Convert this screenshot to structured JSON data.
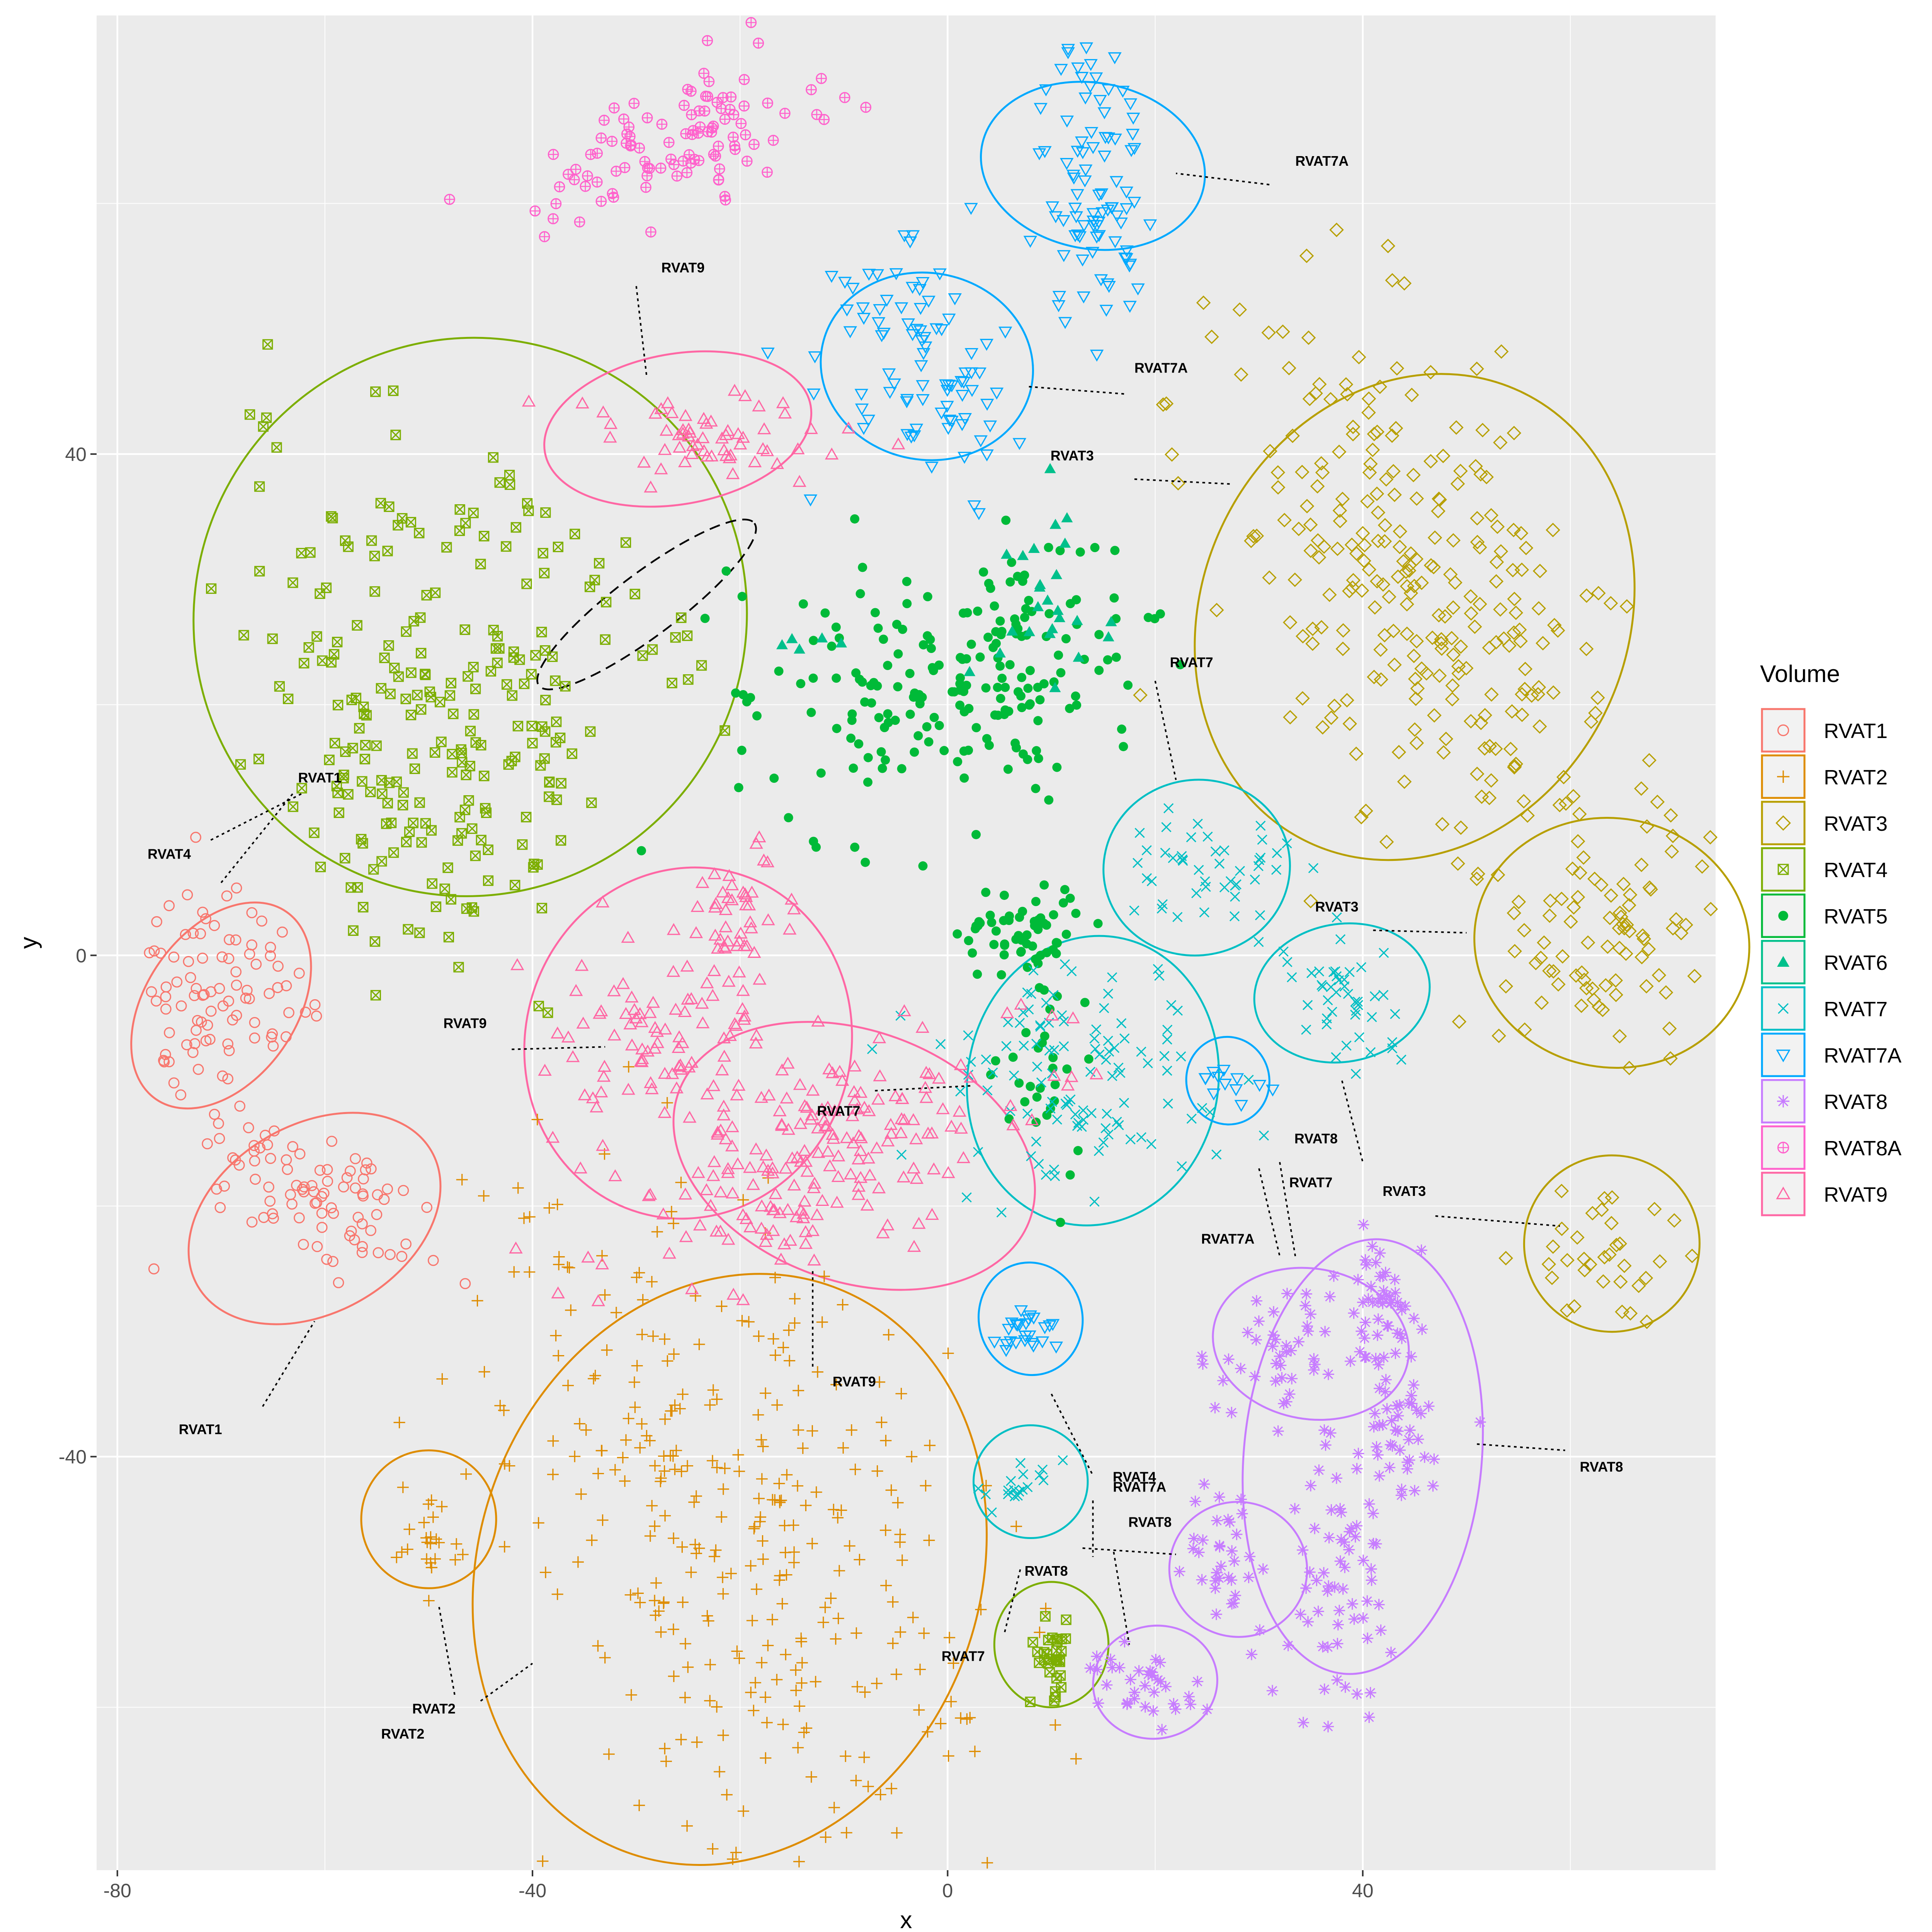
{
  "chart_data": {
    "type": "scatter",
    "xlabel": "x",
    "ylabel": "y",
    "xlim": [
      -82,
      74
    ],
    "ylim": [
      -73,
      75
    ],
    "x_ticks": [
      -80,
      -40,
      0,
      40
    ],
    "y_ticks": [
      -40,
      0,
      40
    ],
    "x_tick_labels": [
      "-80",
      "-40",
      "0",
      "40"
    ],
    "y_tick_labels": [
      "-40",
      "0",
      "40"
    ],
    "grid": true,
    "legend": {
      "title": "Volume",
      "placement": "right"
    },
    "series": [
      {
        "name": "RVAT1",
        "color": "#F8766D",
        "marker": "circle-open",
        "clusters": [
          {
            "center": [
              -70,
              -3
            ],
            "spread": [
              4.5,
              4.5
            ],
            "angle": -55,
            "n": 90
          },
          {
            "center": [
              -61,
              -19
            ],
            "spread": [
              7,
              3
            ],
            "angle": -28,
            "n": 90
          }
        ]
      },
      {
        "name": "RVAT2",
        "color": "#DE8C00",
        "marker": "plus",
        "clusters": [
          {
            "center": [
              -21,
              -46
            ],
            "spread": [
              15,
              10
            ],
            "angle": -60,
            "n": 330
          },
          {
            "center": [
              -50,
              -46
            ],
            "spread": [
              1.5,
              2
            ],
            "angle": 0,
            "n": 22
          }
        ]
      },
      {
        "name": "RVAT3",
        "color": "#B79F00",
        "marker": "diamond-open",
        "clusters": [
          {
            "center": [
              45,
              29
            ],
            "spread": [
              12,
              7
            ],
            "angle": -60,
            "n": 270
          },
          {
            "center": [
              64,
              2
            ],
            "spread": [
              5,
              6
            ],
            "angle": -80,
            "n": 80
          },
          {
            "center": [
              65,
              -24
            ],
            "spread": [
              2.5,
              5
            ],
            "angle": -80,
            "n": 35
          }
        ]
      },
      {
        "name": "RVAT4",
        "color": "#7CAE00",
        "marker": "square-cross",
        "clusters": [
          {
            "center": [
              -50,
              18
            ],
            "spread": [
              11,
              8
            ],
            "angle": -60,
            "n": 230
          },
          {
            "center": [
              -30,
              28
            ],
            "spread": [
              8,
              2
            ],
            "angle": -40,
            "n": 25
          },
          {
            "center": [
              10,
              -56
            ],
            "spread": [
              1,
              1.5
            ],
            "angle": 0,
            "n": 30
          }
        ]
      },
      {
        "name": "RVAT5",
        "color": "#00BA38",
        "marker": "dot",
        "clusters": [
          {
            "center": [
              -7,
              21
            ],
            "spread": [
              7,
              6
            ],
            "angle": 0,
            "n": 80
          },
          {
            "center": [
              6,
              23
            ],
            "spread": [
              5,
              6
            ],
            "angle": -70,
            "n": 130
          },
          {
            "center": [
              7,
              2
            ],
            "spread": [
              3,
              2
            ],
            "angle": 0,
            "n": 60
          },
          {
            "center": [
              9,
              -10
            ],
            "spread": [
              2,
              5
            ],
            "angle": 0,
            "n": 30
          }
        ]
      },
      {
        "name": "RVAT6",
        "color": "#00C08B",
        "marker": "triangle",
        "clusters": [
          {
            "center": [
              11,
              30
            ],
            "spread": [
              3,
              4
            ],
            "angle": 0,
            "n": 25
          },
          {
            "center": [
              -16,
              25
            ],
            "spread": [
              2,
              1
            ],
            "angle": 0,
            "n": 5
          }
        ]
      },
      {
        "name": "RVAT7",
        "color": "#00BFC4",
        "marker": "x",
        "clusters": [
          {
            "center": [
              12,
              -10
            ],
            "spread": [
              5,
              7
            ],
            "angle": -80,
            "n": 110
          },
          {
            "center": [
              25,
              7
            ],
            "spread": [
              4,
              2
            ],
            "angle": 0,
            "n": 45
          },
          {
            "center": [
              38,
              -3
            ],
            "spread": [
              3,
              2
            ],
            "angle": -30,
            "n": 45
          },
          {
            "center": [
              7,
              -42
            ],
            "spread": [
              2.5,
              1
            ],
            "angle": 30,
            "n": 18
          }
        ]
      },
      {
        "name": "RVAT7A",
        "color": "#00A9FF",
        "marker": "triangle-down-open",
        "clusters": [
          {
            "center": [
              14,
              62
            ],
            "spread": [
              2.5,
              6
            ],
            "angle": 0,
            "n": 90
          },
          {
            "center": [
              -3,
              47
            ],
            "spread": [
              5,
              5
            ],
            "angle": -70,
            "n": 90
          },
          {
            "center": [
              27,
              -10
            ],
            "spread": [
              1.5,
              0.7
            ],
            "angle": -20,
            "n": 12
          },
          {
            "center": [
              8,
              -30
            ],
            "spread": [
              1.5,
              1
            ],
            "angle": 0,
            "n": 25
          }
        ]
      },
      {
        "name": "RVAT8",
        "color": "#C77CFF",
        "marker": "star",
        "clusters": [
          {
            "center": [
              34,
              -31
            ],
            "spread": [
              5,
              2.5
            ],
            "angle": 15,
            "n": 55
          },
          {
            "center": [
              42,
              -27
            ],
            "spread": [
              1.5,
              3
            ],
            "angle": 0,
            "n": 40
          },
          {
            "center": [
              43,
              -39
            ],
            "spread": [
              3,
              3
            ],
            "angle": 0,
            "n": 45
          },
          {
            "center": [
              38,
              -50
            ],
            "spread": [
              2.5,
              5
            ],
            "angle": 0,
            "n": 60
          },
          {
            "center": [
              27,
              -48
            ],
            "spread": [
              2,
              3
            ],
            "angle": 0,
            "n": 35
          },
          {
            "center": [
              19,
              -58
            ],
            "spread": [
              3,
              1.5
            ],
            "angle": -20,
            "n": 35
          }
        ]
      },
      {
        "name": "RVAT8A",
        "color": "#FF61CC",
        "marker": "circle-plus",
        "clusters": [
          {
            "center": [
              -26,
              65
            ],
            "spread": [
              7,
              2.5
            ],
            "angle": 15,
            "n": 110
          }
        ]
      },
      {
        "name": "RVAT9",
        "color": "#FF67A4",
        "marker": "triangle-open",
        "clusters": [
          {
            "center": [
              -23,
              41
            ],
            "spread": [
              8,
              2
            ],
            "angle": 0,
            "n": 60
          },
          {
            "center": [
              -28,
              -7
            ],
            "spread": [
              4,
              5
            ],
            "angle": -60,
            "n": 90
          },
          {
            "center": [
              -20,
              3
            ],
            "spread": [
              3,
              3
            ],
            "angle": 0,
            "n": 45
          },
          {
            "center": [
              -12,
              -16
            ],
            "spread": [
              11,
              4
            ],
            "angle": 20,
            "n": 190
          }
        ]
      }
    ],
    "ellipses": [
      {
        "series": "RVAT1",
        "center": [
          -70,
          -4
        ],
        "rx": 11,
        "ry": 6,
        "angle": -55
      },
      {
        "series": "RVAT1",
        "center": [
          -61,
          -21
        ],
        "rx": 13,
        "ry": 7.5,
        "angle": -30
      },
      {
        "series": "RVAT2",
        "center": [
          -21,
          -49
        ],
        "rx": 29,
        "ry": 20,
        "angle": -70
      },
      {
        "series": "RVAT2",
        "center": [
          -50,
          -45
        ],
        "rx": 6.5,
        "ry": 5.5,
        "angle": 0
      },
      {
        "series": "RVAT3",
        "center": [
          45,
          27
        ],
        "rx": 24,
        "ry": 17,
        "angle": -65
      },
      {
        "series": "RVAT3",
        "center": [
          64,
          1
        ],
        "rx": 12,
        "ry": 11,
        "angle": -80
      },
      {
        "series": "RVAT3",
        "center": [
          64,
          -23
        ],
        "rx": 8.5,
        "ry": 7,
        "angle": -85
      },
      {
        "series": "RVAT4",
        "center": [
          -46,
          27
        ],
        "rx": 27,
        "ry": 22,
        "angle": -62
      },
      {
        "series": "RVAT4",
        "center": [
          -10,
          -56
        ],
        "rx": 0,
        "ry": 0,
        "angle": 0,
        "hidden": true
      },
      {
        "series": "RVAT4",
        "center": [
          10,
          -55
        ],
        "rx": 5.5,
        "ry": 5,
        "angle": 0
      },
      {
        "series": "RVAT7",
        "center": [
          14,
          -10
        ],
        "rx": 14,
        "ry": 10,
        "angle": -80
      },
      {
        "series": "RVAT7",
        "center": [
          24,
          7
        ],
        "rx": 9,
        "ry": 7,
        "angle": -10
      },
      {
        "series": "RVAT7",
        "center": [
          38,
          -3
        ],
        "rx": 8.5,
        "ry": 5.5,
        "angle": -10
      },
      {
        "series": "RVAT7",
        "center": [
          8,
          -42
        ],
        "rx": 5.5,
        "ry": 4.5,
        "angle": 0
      },
      {
        "series": "RVAT7A",
        "center": [
          14,
          63
        ],
        "rx": 8,
        "ry": 9,
        "angle": -80
      },
      {
        "series": "RVAT7A",
        "center": [
          -2,
          47
        ],
        "rx": 9,
        "ry": 8.5,
        "angle": -80
      },
      {
        "series": "RVAT7A",
        "center": [
          27,
          -10
        ],
        "rx": 4,
        "ry": 3.5,
        "angle": -10
      },
      {
        "series": "RVAT7A",
        "center": [
          8,
          -29
        ],
        "rx": 5,
        "ry": 4.5,
        "angle": -10
      },
      {
        "series": "RVAT8",
        "center": [
          35,
          -31
        ],
        "rx": 9.5,
        "ry": 6,
        "angle": 10
      },
      {
        "series": "RVAT8",
        "center": [
          40,
          -40
        ],
        "rx": 21,
        "ry": 9.5,
        "angle": -85
      },
      {
        "series": "RVAT8",
        "center": [
          28,
          -49
        ],
        "rx": 6.5,
        "ry": 5.5,
        "angle": -80
      },
      {
        "series": "RVAT8",
        "center": [
          20,
          -58
        ],
        "rx": 6,
        "ry": 4.5,
        "angle": -10
      },
      {
        "series": "RVAT9",
        "center": [
          -26,
          42
        ],
        "rx": 13,
        "ry": 6,
        "angle": -10
      },
      {
        "series": "RVAT9",
        "center": [
          -25,
          -7
        ],
        "rx": 17,
        "ry": 13,
        "angle": -75
      },
      {
        "series": "RVAT9",
        "center": [
          -9,
          -16
        ],
        "rx": 18,
        "ry": 10,
        "angle": 20
      }
    ],
    "dashed_ellipse": {
      "center": [
        -29,
        28
      ],
      "rx": 13,
      "ry": 2.5,
      "angle": -37
    },
    "annotations": [
      {
        "label": "RVAT9",
        "x": -25.5,
        "y": 54.5,
        "anchor": "middle",
        "line": [
          [
            -30,
            53.4
          ],
          [
            -29,
            46.2
          ]
        ]
      },
      {
        "label": "RVAT7A",
        "x": 33.5,
        "y": 63,
        "anchor": "start",
        "line": [
          [
            31,
            61.5
          ],
          [
            22,
            62.4
          ]
        ]
      },
      {
        "label": "RVAT7A",
        "x": 18,
        "y": 46.5,
        "anchor": "start",
        "line": [
          [
            17,
            44.8
          ],
          [
            7.5,
            45.4
          ]
        ]
      },
      {
        "label": "RVAT3",
        "x": 12,
        "y": 39.5,
        "anchor": "middle",
        "line": [
          [
            18,
            38
          ],
          [
            27.5,
            37.6
          ]
        ]
      },
      {
        "label": "RVAT7",
        "x": 23.5,
        "y": 23,
        "anchor": "middle",
        "line": [
          [
            20,
            21.9
          ],
          [
            22,
            14
          ]
        ]
      },
      {
        "label": "RVAT3",
        "x": 37.5,
        "y": 3.5,
        "anchor": "middle",
        "line": [
          [
            41,
            2
          ],
          [
            50,
            1.8
          ]
        ]
      },
      {
        "label": "RVAT1",
        "x": -60.5,
        "y": 13.8,
        "anchor": "middle",
        "line": [
          [
            -71,
            9.2
          ],
          [
            -62,
            13
          ]
        ]
      },
      {
        "label": "RVAT4",
        "x": -75,
        "y": 7.7,
        "anchor": "middle",
        "line": [
          [
            -70,
            5.8
          ],
          [
            -63,
            13
          ]
        ]
      },
      {
        "label": "RVAT9",
        "x": -46.5,
        "y": -5.8,
        "anchor": "middle",
        "line": [
          [
            -42,
            -7.5
          ],
          [
            -33,
            -7.3
          ]
        ]
      },
      {
        "label": "RVAT7",
        "x": -10.5,
        "y": -12.8,
        "anchor": "middle",
        "line": [
          [
            -7,
            -10.8
          ],
          [
            2.5,
            -10.4
          ]
        ]
      },
      {
        "label": "RVAT8",
        "x": 35.5,
        "y": -15,
        "anchor": "middle",
        "line": [
          [
            32,
            -16.5
          ],
          [
            33.5,
            -24
          ]
        ]
      },
      {
        "label": "RVAT7",
        "x": 35,
        "y": -18.5,
        "anchor": "middle",
        "line": [
          [
            38,
            -10
          ],
          [
            40,
            -16.5
          ]
        ]
      },
      {
        "label": "RVAT3",
        "x": 44,
        "y": -19.2,
        "anchor": "middle",
        "line": [
          [
            47,
            -20.8
          ],
          [
            59,
            -21.6
          ]
        ]
      },
      {
        "label": "RVAT7A",
        "x": 27,
        "y": -23,
        "anchor": "middle",
        "line": [
          [
            30,
            -17
          ],
          [
            32,
            -24
          ]
        ]
      },
      {
        "label": "RVAT8",
        "x": 63,
        "y": -41.2,
        "anchor": "middle",
        "line": [
          [
            51,
            -39
          ],
          [
            59.5,
            -39.5
          ]
        ]
      },
      {
        "label": "RVAT9",
        "x": -9,
        "y": -34.4,
        "anchor": "middle",
        "line": [
          [
            -13,
            -25.2
          ],
          [
            -13,
            -33
          ]
        ]
      },
      {
        "label": "RVAT1",
        "x": -72,
        "y": -38.2,
        "anchor": "middle",
        "line": [
          [
            -66,
            -36
          ],
          [
            -61,
            -29.2
          ]
        ]
      },
      {
        "label": "RVAT4",
        "x": 18,
        "y": -42,
        "anchor": "middle",
        "line": [
          [
            14,
            -43.5
          ],
          [
            14,
            -48
          ]
        ]
      },
      {
        "label": "RVAT7A",
        "x": 18.5,
        "y": -42.8,
        "anchor": "middle",
        "line": [
          [
            10,
            -35
          ],
          [
            14,
            -41.5
          ]
        ]
      },
      {
        "label": "RVAT8",
        "x": 19.5,
        "y": -45.6,
        "anchor": "middle",
        "line": [
          [
            13,
            -47.3
          ],
          [
            22,
            -47.8
          ]
        ]
      },
      {
        "label": "RVAT8",
        "x": 9.5,
        "y": -49.5,
        "anchor": "middle",
        "line": [
          [
            16,
            -47.6
          ],
          [
            17.5,
            -55
          ]
        ]
      },
      {
        "label": "RVAT7",
        "x": 1.5,
        "y": -56.3,
        "anchor": "middle",
        "line": [
          [
            5.5,
            -54
          ],
          [
            7,
            -49
          ]
        ]
      },
      {
        "label": "RVAT2",
        "x": -49.5,
        "y": -60.5,
        "anchor": "middle",
        "line": [
          [
            -47.5,
            -59
          ],
          [
            -49,
            -52
          ]
        ]
      },
      {
        "label": "RVAT2",
        "x": -52.5,
        "y": -62.5,
        "anchor": "middle",
        "line": [
          [
            -45,
            -59.5
          ],
          [
            -40,
            -56.5
          ]
        ]
      }
    ]
  }
}
